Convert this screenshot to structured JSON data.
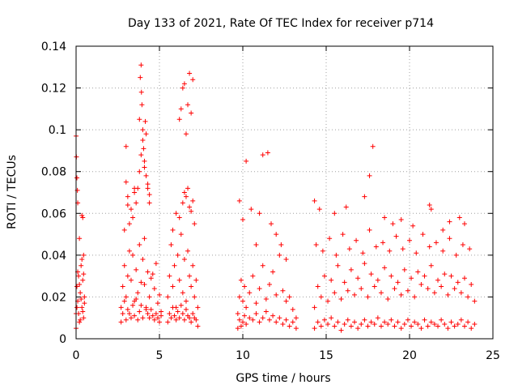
{
  "chart_data": {
    "type": "scatter",
    "title": "Day 133 of 2021, Rate Of TEC Index for receiver p714",
    "xlabel": "GPS time / hours",
    "ylabel": "ROTI / TECUs",
    "xlim": [
      0,
      25
    ],
    "ylim": [
      0,
      0.14
    ],
    "x_ticks": [
      0,
      5,
      10,
      15,
      20,
      25
    ],
    "x_tick_labels": [
      "0",
      "5",
      "10",
      "15",
      "20",
      "25"
    ],
    "y_ticks": [
      0,
      0.02,
      0.04,
      0.06,
      0.08,
      0.1,
      0.12,
      0.14
    ],
    "y_tick_labels": [
      "0",
      "0.02",
      "0.04",
      "0.06",
      "0.08",
      "0.1",
      "0.12",
      "0.14"
    ],
    "grid": true,
    "marker": "plus",
    "color": "#ff0000",
    "series": [
      {
        "name": "ROTI",
        "x": [
          0.0,
          0.05,
          0.1,
          0.15,
          0.2,
          0.25,
          0.3,
          0.35,
          0.4,
          0.45,
          0.5,
          0.0,
          0.05,
          0.1,
          0.15,
          0.2,
          0.25,
          0.3,
          0.35,
          0.4,
          0.45,
          0.5,
          0.0,
          0.02,
          0.05,
          0.08,
          0.1,
          0.2,
          0.35,
          0.4,
          0.45,
          2.7,
          2.8,
          2.9,
          3.0,
          3.1,
          3.2,
          3.3,
          3.4,
          3.5,
          3.6,
          3.7,
          3.8,
          3.9,
          4.0,
          4.1,
          4.2,
          4.3,
          4.4,
          4.5,
          4.6,
          4.7,
          4.8,
          4.9,
          5.0,
          5.1,
          2.7,
          2.8,
          2.9,
          3.0,
          3.1,
          3.2,
          3.3,
          3.4,
          3.5,
          3.6,
          3.7,
          3.8,
          3.9,
          4.0,
          4.1,
          4.2,
          4.3,
          4.4,
          4.5,
          4.6,
          4.7,
          4.8,
          4.9,
          5.0,
          5.1,
          2.9,
          3.0,
          3.1,
          3.2,
          3.3,
          3.4,
          3.5,
          3.6,
          3.7,
          3.8,
          3.9,
          4.0,
          4.1,
          4.2,
          4.3,
          4.4,
          3.0,
          3.1,
          3.5,
          3.8,
          3.85,
          3.9,
          3.92,
          3.95,
          4.0,
          4.05,
          4.1,
          4.15,
          4.2,
          4.3,
          4.4,
          5.5,
          5.6,
          5.7,
          5.8,
          5.9,
          6.0,
          6.1,
          6.2,
          6.3,
          6.4,
          6.5,
          6.6,
          6.7,
          6.8,
          6.9,
          7.0,
          7.1,
          7.2,
          7.3,
          5.5,
          5.6,
          5.7,
          5.8,
          5.9,
          6.0,
          6.1,
          6.2,
          6.3,
          6.4,
          6.5,
          6.6,
          6.7,
          6.8,
          6.9,
          7.0,
          7.1,
          7.2,
          7.3,
          5.8,
          6.0,
          6.2,
          6.4,
          6.5,
          6.6,
          6.7,
          6.8,
          6.9,
          7.0,
          7.1,
          6.2,
          6.3,
          6.4,
          6.5,
          6.6,
          6.7,
          6.8,
          6.9,
          7.0,
          9.7,
          9.8,
          9.9,
          10.0,
          10.1,
          10.2,
          10.4,
          10.6,
          10.8,
          11.0,
          11.2,
          11.4,
          11.6,
          11.8,
          12.0,
          12.2,
          12.4,
          12.6,
          12.8,
          13.0,
          13.2,
          9.7,
          9.8,
          9.9,
          10.0,
          10.1,
          10.2,
          10.4,
          10.6,
          10.8,
          11.0,
          11.2,
          11.4,
          11.6,
          11.8,
          12.0,
          12.2,
          12.4,
          12.6,
          12.8,
          13.0,
          13.2,
          9.8,
          10.0,
          10.2,
          10.5,
          10.8,
          11.0,
          11.2,
          11.5,
          11.7,
          12.0,
          12.3,
          12.6,
          14.3,
          14.5,
          14.7,
          14.9,
          15.1,
          15.3,
          15.5,
          15.7,
          15.9,
          16.1,
          16.3,
          16.5,
          16.7,
          16.9,
          17.1,
          17.3,
          17.5,
          17.7,
          17.9,
          18.1,
          18.3,
          18.5,
          18.7,
          18.9,
          19.1,
          19.3,
          19.5,
          19.7,
          19.9,
          20.1,
          20.3,
          20.5,
          20.7,
          20.9,
          21.1,
          21.3,
          21.5,
          21.7,
          21.9,
          22.1,
          22.3,
          22.5,
          22.7,
          22.9,
          23.1,
          23.3,
          23.5,
          23.7,
          23.9,
          14.3,
          14.5,
          14.7,
          14.9,
          15.1,
          15.3,
          15.5,
          15.7,
          15.9,
          16.1,
          16.3,
          16.5,
          16.7,
          16.9,
          17.1,
          17.3,
          17.5,
          17.7,
          17.9,
          18.1,
          18.3,
          18.5,
          18.7,
          18.9,
          19.1,
          19.3,
          19.5,
          19.7,
          19.9,
          20.1,
          20.3,
          20.5,
          20.7,
          20.9,
          21.1,
          21.3,
          21.5,
          21.7,
          21.9,
          22.1,
          22.3,
          22.5,
          22.7,
          22.9,
          23.1,
          23.3,
          23.5,
          23.7,
          23.9,
          14.4,
          14.8,
          15.2,
          15.6,
          16.0,
          16.4,
          16.8,
          17.2,
          17.6,
          18.0,
          18.4,
          18.8,
          19.2,
          19.6,
          20.0,
          20.4,
          20.8,
          21.2,
          21.6,
          22.0,
          22.4,
          22.8,
          23.2,
          23.6,
          14.3,
          14.6,
          15.5,
          16.2,
          17.3,
          17.6,
          17.8,
          18.5,
          19.0,
          19.5,
          20.2,
          21.2,
          21.3,
          22.0,
          22.4,
          23.0,
          23.3
        ],
        "y": [
          0.012,
          0.025,
          0.018,
          0.03,
          0.008,
          0.022,
          0.035,
          0.015,
          0.028,
          0.01,
          0.02,
          0.005,
          0.015,
          0.032,
          0.012,
          0.026,
          0.009,
          0.019,
          0.038,
          0.013,
          0.031,
          0.017,
          0.097,
          0.087,
          0.077,
          0.071,
          0.065,
          0.048,
          0.059,
          0.058,
          0.04,
          0.015,
          0.025,
          0.035,
          0.02,
          0.03,
          0.012,
          0.028,
          0.04,
          0.018,
          0.033,
          0.022,
          0.045,
          0.016,
          0.038,
          0.026,
          0.014,
          0.032,
          0.02,
          0.029,
          0.011,
          0.024,
          0.036,
          0.017,
          0.021,
          0.013,
          0.008,
          0.012,
          0.018,
          0.009,
          0.014,
          0.042,
          0.01,
          0.016,
          0.011,
          0.019,
          0.009,
          0.013,
          0.027,
          0.01,
          0.048,
          0.015,
          0.012,
          0.01,
          0.014,
          0.031,
          0.009,
          0.012,
          0.01,
          0.008,
          0.011,
          0.052,
          0.075,
          0.068,
          0.055,
          0.062,
          0.058,
          0.07,
          0.065,
          0.072,
          0.08,
          0.088,
          0.095,
          0.085,
          0.078,
          0.074,
          0.069,
          0.092,
          0.064,
          0.072,
          0.105,
          0.125,
          0.131,
          0.118,
          0.112,
          0.1,
          0.091,
          0.082,
          0.104,
          0.098,
          0.072,
          0.065,
          0.02,
          0.03,
          0.045,
          0.025,
          0.035,
          0.015,
          0.04,
          0.028,
          0.05,
          0.022,
          0.038,
          0.018,
          0.042,
          0.03,
          0.025,
          0.035,
          0.02,
          0.028,
          0.015,
          0.008,
          0.012,
          0.01,
          0.015,
          0.011,
          0.009,
          0.013,
          0.01,
          0.016,
          0.012,
          0.009,
          0.014,
          0.011,
          0.01,
          0.008,
          0.012,
          0.01,
          0.009,
          0.006,
          0.052,
          0.06,
          0.058,
          0.065,
          0.07,
          0.068,
          0.072,
          0.063,
          0.061,
          0.066,
          0.055,
          0.105,
          0.11,
          0.12,
          0.122,
          0.098,
          0.112,
          0.127,
          0.108,
          0.124,
          0.012,
          0.02,
          0.028,
          0.018,
          0.025,
          0.015,
          0.022,
          0.03,
          0.017,
          0.024,
          0.035,
          0.019,
          0.026,
          0.032,
          0.021,
          0.04,
          0.023,
          0.018,
          0.02,
          0.014,
          0.01,
          0.005,
          0.009,
          0.006,
          0.008,
          0.011,
          0.007,
          0.01,
          0.009,
          0.012,
          0.008,
          0.01,
          0.013,
          0.009,
          0.011,
          0.008,
          0.01,
          0.007,
          0.009,
          0.006,
          0.008,
          0.005,
          0.066,
          0.057,
          0.085,
          0.062,
          0.045,
          0.06,
          0.088,
          0.089,
          0.055,
          0.05,
          0.045,
          0.038,
          0.015,
          0.025,
          0.02,
          0.03,
          0.018,
          0.028,
          0.022,
          0.035,
          0.019,
          0.027,
          0.023,
          0.033,
          0.021,
          0.029,
          0.024,
          0.036,
          0.02,
          0.031,
          0.025,
          0.028,
          0.022,
          0.034,
          0.019,
          0.03,
          0.024,
          0.027,
          0.021,
          0.033,
          0.023,
          0.029,
          0.02,
          0.032,
          0.026,
          0.03,
          0.024,
          0.035,
          0.022,
          0.028,
          0.025,
          0.031,
          0.021,
          0.03,
          0.024,
          0.027,
          0.022,
          0.029,
          0.02,
          0.026,
          0.018,
          0.005,
          0.008,
          0.006,
          0.009,
          0.007,
          0.01,
          0.006,
          0.008,
          0.004,
          0.007,
          0.009,
          0.006,
          0.008,
          0.005,
          0.007,
          0.009,
          0.006,
          0.008,
          0.007,
          0.01,
          0.006,
          0.008,
          0.007,
          0.009,
          0.006,
          0.008,
          0.005,
          0.007,
          0.009,
          0.006,
          0.008,
          0.007,
          0.005,
          0.009,
          0.006,
          0.008,
          0.007,
          0.006,
          0.009,
          0.007,
          0.005,
          0.008,
          0.006,
          0.007,
          0.009,
          0.006,
          0.008,
          0.005,
          0.007,
          0.045,
          0.042,
          0.048,
          0.04,
          0.05,
          0.043,
          0.047,
          0.041,
          0.052,
          0.044,
          0.046,
          0.042,
          0.049,
          0.043,
          0.047,
          0.041,
          0.05,
          0.044,
          0.046,
          0.042,
          0.048,
          0.04,
          0.045,
          0.043,
          0.066,
          0.062,
          0.06,
          0.063,
          0.068,
          0.078,
          0.092,
          0.058,
          0.055,
          0.057,
          0.054,
          0.064,
          0.062,
          0.052,
          0.056,
          0.058,
          0.055
        ]
      }
    ]
  }
}
